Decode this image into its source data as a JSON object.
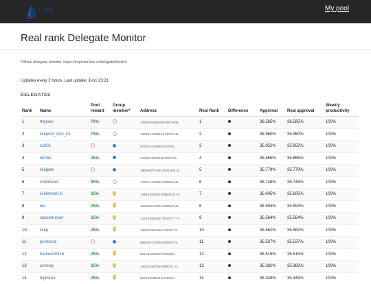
{
  "header": {
    "logo_text": "Lisk",
    "my_pool": "My pool"
  },
  "page_title": "Real rank Delegate Monitor",
  "official_text": "Official delegate monitor: https://explorer.lisk.io/delegateMonitor",
  "updates_text": "Updates every 2 hours. Last update: Jun1 23:21",
  "section_label": "DELEGATES",
  "columns": {
    "rank": "Rank",
    "name": "Name",
    "pool_reward": "Pool reward",
    "group_member": "Group member*",
    "address": "Address",
    "real_rank": "Real Rank",
    "difference": "Difference",
    "approval": "Approval",
    "real_approval": "Real approval",
    "weekly_productivity": "Weekly productivity"
  },
  "colors": {
    "link": "#2a6fb8",
    "reward": "#2f9a2f",
    "group_blue": "#2f7fd8",
    "group_pin": "#e0b030"
  },
  "rows": [
    {
      "rank": "1",
      "name": "thepool",
      "reward": "70%",
      "group": "empty",
      "address": "10839494360800387009L",
      "real_rank": "1",
      "approval": "36.585%",
      "real_approval": "36.585%",
      "productivity": "100%"
    },
    {
      "rank": "2",
      "name": "liskpool_com_01",
      "reward": "75%",
      "group": "empty",
      "address": "14593474055247442712L",
      "real_rank": "2",
      "approval": "35.960%",
      "real_approval": "35.960%",
      "productivity": "100%"
    },
    {
      "rank": "3",
      "name": "cc001",
      "reward": "",
      "group": "blue",
      "address": "678715435886114730L",
      "real_rank": "3",
      "approval": "35.952%",
      "real_approval": "35.952%",
      "productivity": "100%"
    },
    {
      "rank": "4",
      "name": "tembo",
      "reward": "25%",
      "group": "blue",
      "address": "2433957930558702776L",
      "real_rank": "4",
      "approval": "35.865%",
      "real_approval": "35.865%",
      "productivity": "100%"
    },
    {
      "rank": "5",
      "name": "liskgate",
      "reward": "",
      "group": "blue",
      "address": "1605609714914041685 4L",
      "real_rank": "5",
      "approval": "35.779%",
      "real_approval": "35.779%",
      "productivity": "100%"
    },
    {
      "rank": "6",
      "name": "robinhood",
      "reward": "90%",
      "group": "empty",
      "address": "17621212458226596154L",
      "real_rank": "6",
      "approval": "35.748%",
      "real_approval": "35.748%",
      "productivity": "100%"
    },
    {
      "rank": "7",
      "name": "iii.element.iii",
      "reward": "25%",
      "group": "pin",
      "address": "1394325616740553182 0L",
      "real_rank": "7",
      "approval": "35.605%",
      "real_approval": "35.605%",
      "productivity": "100%"
    },
    {
      "rank": "8",
      "name": "leo",
      "reward": "25%",
      "group": "pin",
      "address": "15458001843048965724L",
      "real_rank": "8",
      "approval": "35.594%",
      "real_approval": "35.594%",
      "productivity": "100%"
    },
    {
      "rank": "9",
      "name": "spacetrucker",
      "reward": "25%",
      "group": "pin",
      "address": "1421248412674616777 7L",
      "real_rank": "9",
      "approval": "35.564%",
      "real_approval": "35.564%",
      "productivity": "100%"
    },
    {
      "rank": "10",
      "name": "liskp",
      "reward": "25%",
      "group": "pin",
      "address": "440262964433443427 0L",
      "real_rank": "10",
      "approval": "35.562%",
      "real_approval": "35.562%",
      "productivity": "100%"
    },
    {
      "rank": "11",
      "name": "punkrock",
      "reward": "",
      "group": "blue",
      "address": "685306174299259319 0L",
      "real_rank": "11",
      "approval": "35.537%",
      "real_approval": "35.537%",
      "productivity": "100%"
    },
    {
      "rank": "12",
      "name": "badman0316",
      "reward": "25%",
      "group": "pin",
      "address": "801959660607939388L",
      "real_rank": "12",
      "approval": "35.515%",
      "real_approval": "35.515%",
      "productivity": "100%"
    },
    {
      "rank": "13",
      "name": "acheng",
      "reward": "25%",
      "group": "pin",
      "address": "154351567024995767 2L",
      "real_rank": "13",
      "approval": "35.382%",
      "real_approval": "35.382%",
      "productivity": "100%"
    },
    {
      "rank": "14",
      "name": "bigfisher",
      "reward": "25%",
      "group": "pin",
      "address": "628140585016203331L",
      "real_rank": "14",
      "approval": "35.349%",
      "real_approval": "35.349%",
      "productivity": "100%"
    }
  ]
}
